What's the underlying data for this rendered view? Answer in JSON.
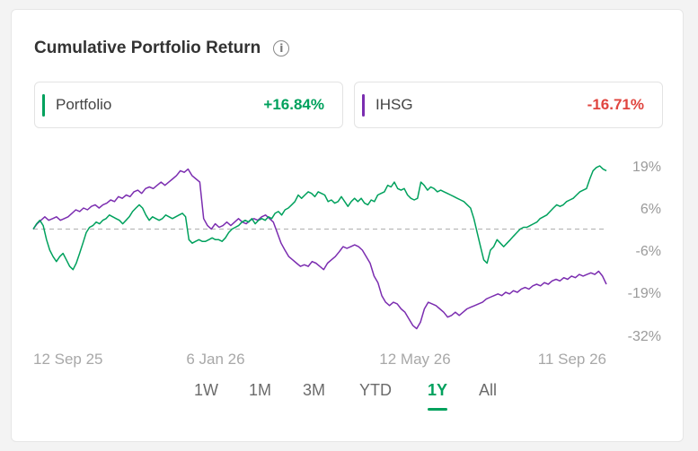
{
  "title": "Cumulative Portfolio Return",
  "info_icon": "info-icon",
  "colors": {
    "portfolio": "#00a15d",
    "ihsg": "#7b2db0",
    "positive": "#00a15d",
    "negative": "#e0453f",
    "axis_text": "#9a9a9a",
    "baseline": "#b8b8b8"
  },
  "stats": {
    "portfolio": {
      "name": "Portfolio",
      "value": "+16.84%"
    },
    "ihsg": {
      "name": "IHSG",
      "value": "-16.71%"
    }
  },
  "tabs": [
    "1W",
    "1M",
    "3M",
    "YTD",
    "1Y",
    "All"
  ],
  "active_tab": "1Y",
  "chart_data": {
    "type": "line",
    "x_ticks": [
      "12 Sep 25",
      "6 Jan 26",
      "12 May 26",
      "11 Sep 26"
    ],
    "y_ticks": [
      "19%",
      "6%",
      "-6%",
      "-19%",
      "-32%"
    ],
    "ylim": [
      -32,
      19
    ],
    "baseline": 0,
    "grid": false,
    "series": [
      {
        "name": "Portfolio",
        "values": [
          0,
          1.5,
          2.5,
          1,
          -3,
          -6,
          -8,
          -9.5,
          -8,
          -7,
          -9,
          -11,
          -12,
          -10,
          -7,
          -4,
          -1,
          0.5,
          1,
          2,
          1.5,
          2.5,
          3,
          4,
          3.5,
          3,
          2.5,
          1.5,
          2.5,
          3.5,
          5,
          6,
          7,
          6,
          4,
          2.5,
          3.5,
          3,
          2.5,
          3,
          4,
          3.5,
          3,
          3.5,
          4,
          4.5,
          3.5,
          -3,
          -4,
          -3.5,
          -3,
          -3.5,
          -3.5,
          -3,
          -2.5,
          -3,
          -3,
          -3.5,
          -2.5,
          -1,
          0,
          0.5,
          1,
          2,
          2.5,
          2,
          3,
          1.5,
          2.5,
          3,
          2.5,
          3.5,
          3,
          4.5,
          5,
          4,
          5.5,
          6,
          7,
          8,
          10,
          9,
          10,
          11,
          10.5,
          9.5,
          11,
          10.5,
          10,
          8,
          8.5,
          7.5,
          8,
          9.5,
          8,
          6.5,
          8,
          9,
          8,
          9,
          7.5,
          7,
          8.5,
          8,
          10,
          10.5,
          11,
          13,
          12.5,
          14,
          12,
          11.5,
          12,
          10,
          9,
          8.5,
          9,
          14,
          13,
          11.5,
          12.5,
          12,
          11,
          11.5,
          11,
          10.5,
          10,
          9.5,
          9,
          8.5,
          8,
          7,
          6,
          3,
          -1,
          -5,
          -9,
          -10,
          -6,
          -5,
          -3,
          -4,
          -5,
          -4,
          -3,
          -2,
          -1,
          0,
          0.5,
          0.5,
          1,
          1.5,
          2,
          3,
          3.5,
          4,
          5,
          6,
          7,
          6.5,
          7,
          8,
          8.5,
          9,
          10,
          11,
          11.5,
          12,
          15,
          17.5,
          18.5,
          19,
          18,
          17.5
        ],
        "color": "#00a15d"
      },
      {
        "name": "IHSG",
        "values": [
          0,
          1.5,
          2.5,
          3.5,
          2.5,
          3,
          3.5,
          2.5,
          3,
          3.5,
          4.5,
          5.5,
          5,
          6,
          5.5,
          6.5,
          7,
          6,
          7,
          7.5,
          8.5,
          8,
          9.5,
          9,
          10,
          9.5,
          11,
          11.5,
          10.5,
          12,
          12.5,
          12,
          13,
          14,
          13,
          14,
          15,
          16,
          17.5,
          17,
          18,
          16,
          15,
          14,
          3,
          1,
          0,
          1.5,
          0.5,
          1,
          2,
          1,
          2,
          3,
          2,
          1.5,
          2.5,
          3,
          2.5,
          3.5,
          4,
          3,
          2,
          -1,
          -4,
          -6,
          -8,
          -9,
          -10,
          -11,
          -10.5,
          -11,
          -9.5,
          -10,
          -11,
          -12,
          -10,
          -9,
          -8,
          -6.5,
          -5,
          -5.5,
          -5,
          -4.5,
          -5,
          -6,
          -8,
          -10,
          -14,
          -16,
          -20,
          -22,
          -23,
          -22,
          -22.5,
          -24,
          -25,
          -27,
          -29,
          -30,
          -28,
          -24,
          -22,
          -22.5,
          -23,
          -24,
          -25,
          -26.5,
          -26,
          -25,
          -26,
          -25,
          -24,
          -23.5,
          -23,
          -22.5,
          -22,
          -21,
          -20.5,
          -20,
          -19.5,
          -20,
          -19,
          -19.5,
          -18.5,
          -19,
          -18,
          -17.5,
          -18,
          -17,
          -16.5,
          -17,
          -16,
          -16.5,
          -15.5,
          -15,
          -15.5,
          -14.5,
          -15,
          -14,
          -14.5,
          -13.5,
          -14,
          -13.5,
          -13,
          -13.5,
          -12.5,
          -14,
          -16.5
        ]
      }
    ]
  }
}
